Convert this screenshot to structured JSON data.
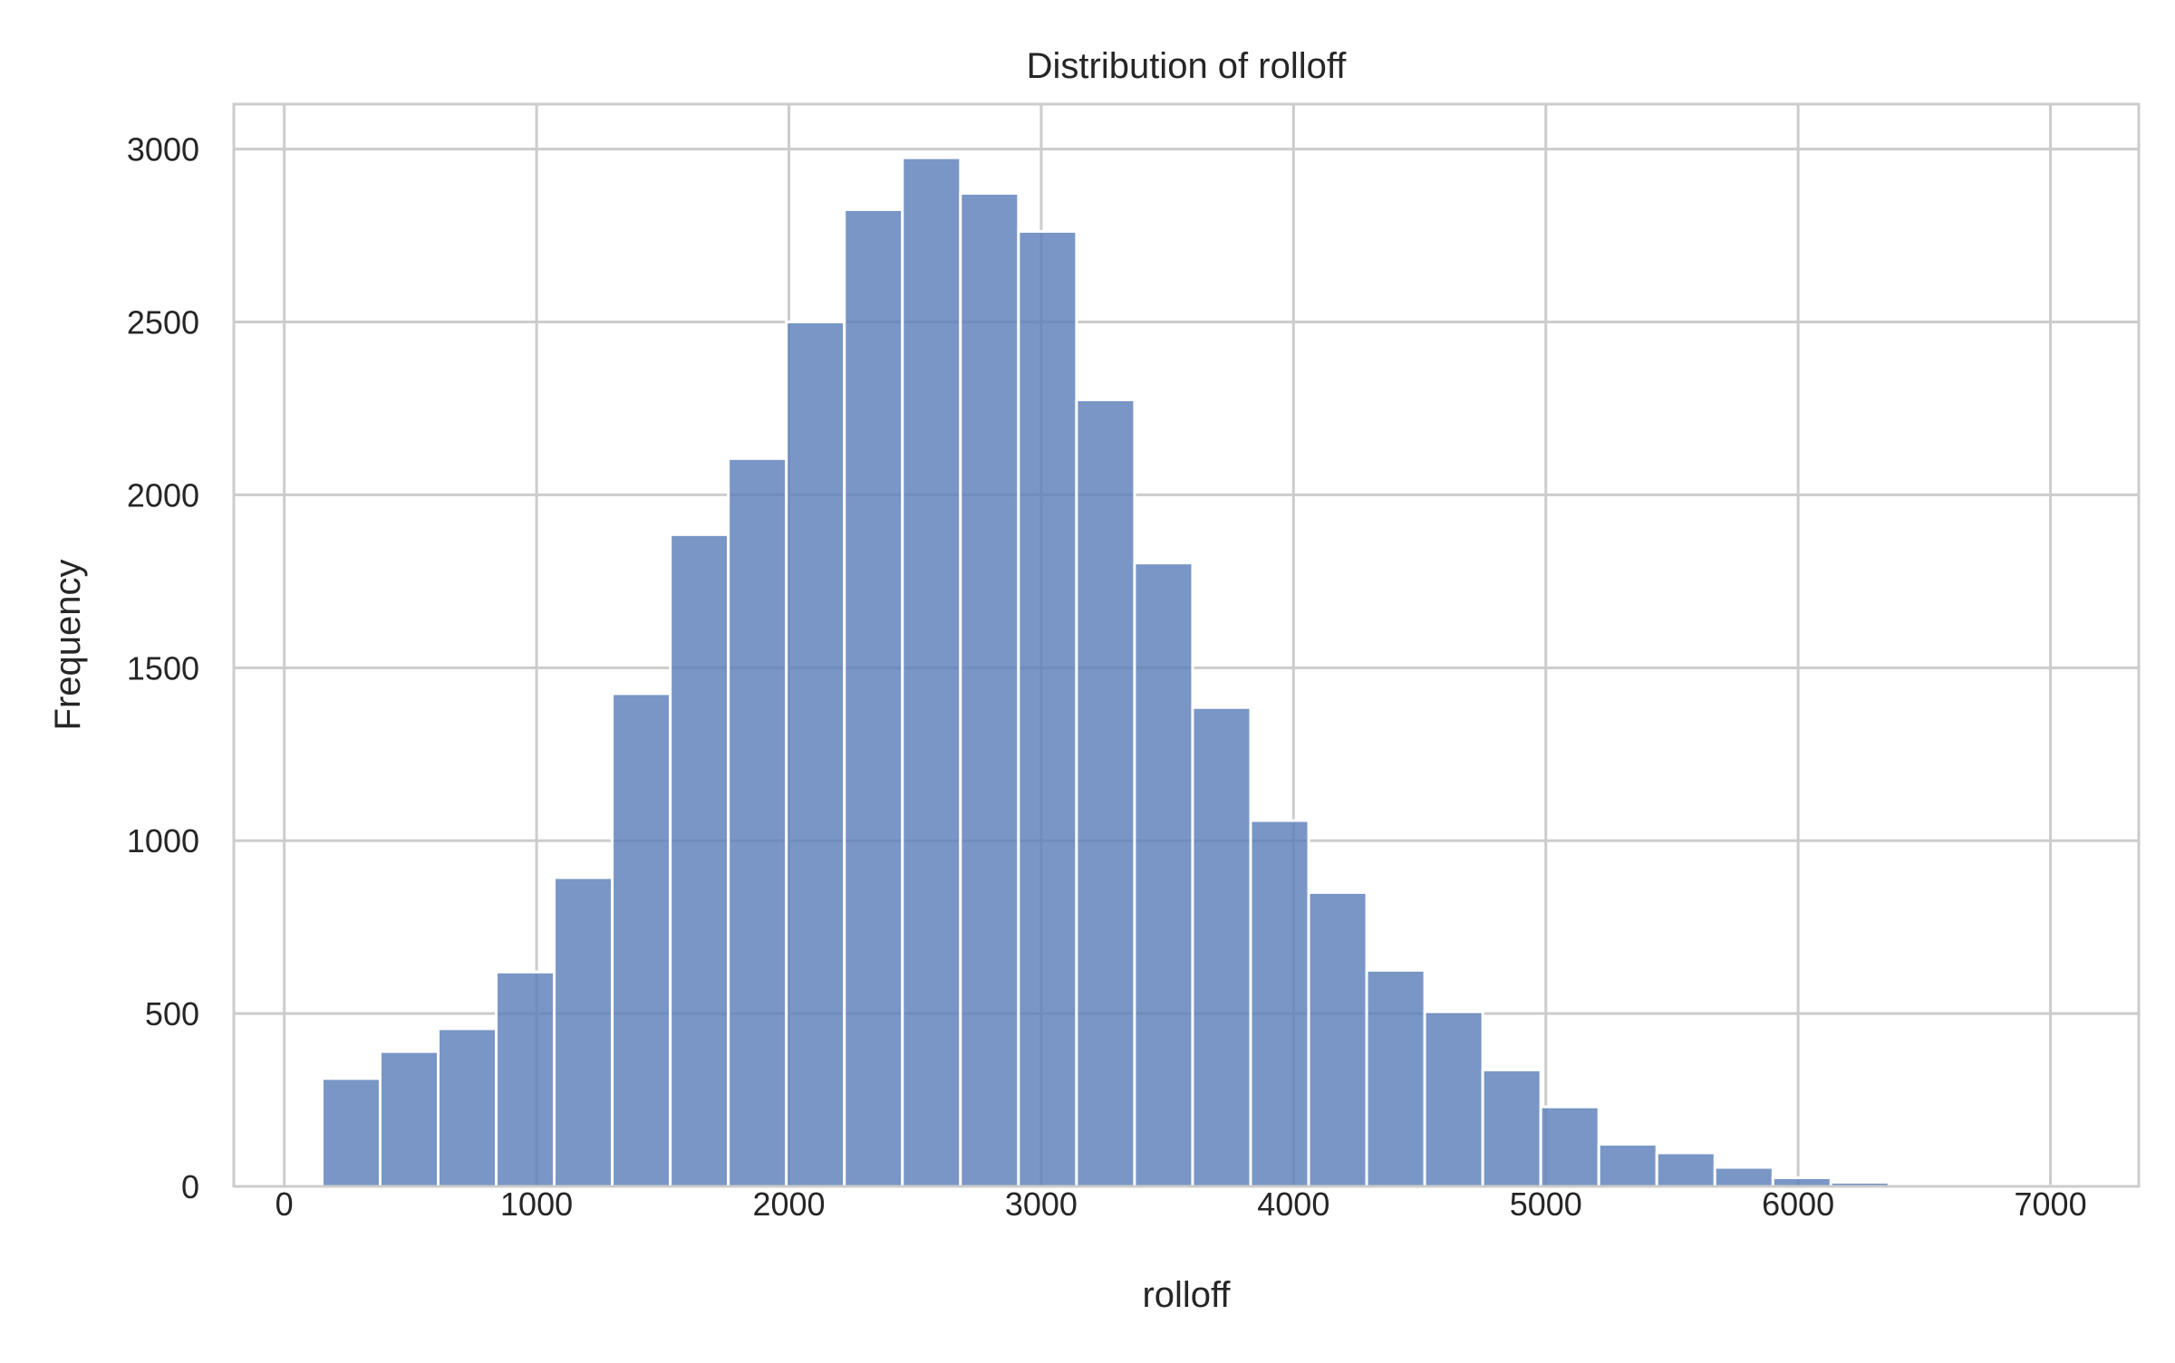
{
  "chart_data": {
    "type": "bar",
    "title": "Distribution of rolloff",
    "xlabel": "rolloff",
    "ylabel": "Frequency",
    "xlim": [
      -200,
      7350
    ],
    "ylim": [
      0,
      3130
    ],
    "xticks": [
      "0",
      "1000",
      "2000",
      "3000",
      "4000",
      "5000",
      "6000",
      "7000"
    ],
    "xtick_values": [
      0,
      1000,
      2000,
      3000,
      4000,
      5000,
      6000,
      7000
    ],
    "yticks": [
      "0",
      "500",
      "1000",
      "1500",
      "2000",
      "2500",
      "3000"
    ],
    "ytick_values": [
      0,
      500,
      1000,
      1500,
      2000,
      2500,
      3000
    ],
    "grid": true,
    "bar_color": "#5b7fba",
    "bins": [
      {
        "start": 150,
        "end": 380,
        "count": 312
      },
      {
        "start": 380,
        "end": 610,
        "count": 390
      },
      {
        "start": 610,
        "end": 840,
        "count": 456
      },
      {
        "start": 840,
        "end": 1070,
        "count": 620
      },
      {
        "start": 1070,
        "end": 1300,
        "count": 893
      },
      {
        "start": 1300,
        "end": 1530,
        "count": 1425
      },
      {
        "start": 1530,
        "end": 1760,
        "count": 1885
      },
      {
        "start": 1760,
        "end": 1990,
        "count": 2105
      },
      {
        "start": 1990,
        "end": 2220,
        "count": 2500
      },
      {
        "start": 2220,
        "end": 2450,
        "count": 2825
      },
      {
        "start": 2450,
        "end": 2680,
        "count": 2975
      },
      {
        "start": 2680,
        "end": 2910,
        "count": 2872
      },
      {
        "start": 2910,
        "end": 3140,
        "count": 2762
      },
      {
        "start": 3140,
        "end": 3370,
        "count": 2275
      },
      {
        "start": 3370,
        "end": 3600,
        "count": 1803
      },
      {
        "start": 3600,
        "end": 3830,
        "count": 1385
      },
      {
        "start": 3830,
        "end": 4060,
        "count": 1058
      },
      {
        "start": 4060,
        "end": 4290,
        "count": 850
      },
      {
        "start": 4290,
        "end": 4520,
        "count": 625
      },
      {
        "start": 4520,
        "end": 4750,
        "count": 505
      },
      {
        "start": 4750,
        "end": 4980,
        "count": 337
      },
      {
        "start": 4980,
        "end": 5210,
        "count": 230
      },
      {
        "start": 5210,
        "end": 5440,
        "count": 122
      },
      {
        "start": 5440,
        "end": 5670,
        "count": 97
      },
      {
        "start": 5670,
        "end": 5900,
        "count": 55
      },
      {
        "start": 5900,
        "end": 6130,
        "count": 25
      },
      {
        "start": 6130,
        "end": 6360,
        "count": 12
      },
      {
        "start": 6360,
        "end": 6590,
        "count": 4
      },
      {
        "start": 6590,
        "end": 6820,
        "count": 2
      },
      {
        "start": 6820,
        "end": 7050,
        "count": 1
      }
    ]
  }
}
